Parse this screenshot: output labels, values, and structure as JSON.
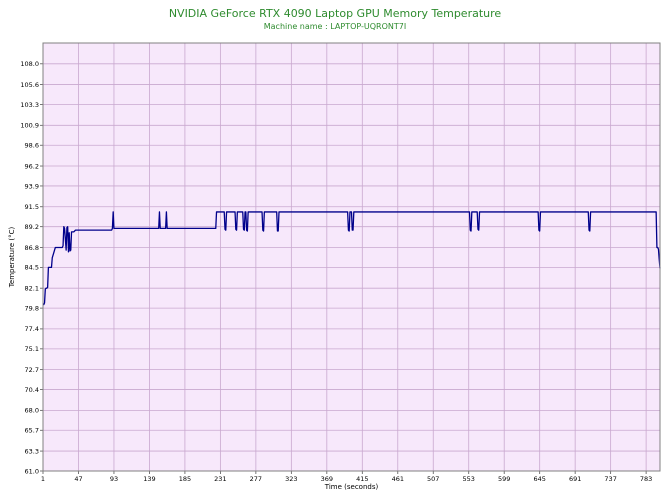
{
  "chart_data": {
    "type": "line",
    "title": "NVIDIA GeForce RTX 4090 Laptop GPU Memory Temperature",
    "subtitle": "Machine name : LAPTOP-UQRONT7I",
    "xlabel": "Time (seconds)",
    "ylabel": "Temperature (°C)",
    "xlim": [
      1,
      801
    ],
    "ylim": [
      61.0,
      110.4
    ],
    "x_ticks": [
      1,
      47,
      93,
      139,
      185,
      231,
      277,
      323,
      369,
      415,
      461,
      507,
      553,
      599,
      645,
      691,
      737,
      783
    ],
    "y_ticks": [
      61.0,
      63.3,
      65.7,
      68.0,
      70.4,
      72.7,
      75.1,
      77.4,
      79.8,
      82.1,
      84.5,
      86.8,
      89.2,
      91.5,
      93.9,
      96.2,
      98.6,
      100.9,
      103.3,
      105.6,
      108.0
    ],
    "grid": true,
    "background_color": "#f7e8fb",
    "grid_color": "#c9a8cf",
    "line_color": "#00008b",
    "title_color": "#2e8b2e",
    "series": [
      {
        "x": [
          1,
          2,
          3,
          4,
          5,
          6,
          7,
          8,
          12,
          13,
          16,
          17,
          26,
          27,
          28,
          29,
          31,
          32,
          33,
          34,
          35,
          36,
          37,
          38,
          41,
          42,
          43,
          44,
          90,
          91,
          92,
          93,
          150,
          151,
          152,
          153,
          159,
          160,
          161,
          162,
          225,
          226,
          227,
          228,
          236,
          237,
          238,
          239,
          250,
          251,
          252,
          253,
          260,
          261,
          262,
          263,
          264,
          265,
          266,
          267,
          285,
          286,
          287,
          288,
          304,
          305,
          306,
          307,
          396,
          397,
          398,
          399,
          401,
          402,
          403,
          404,
          554,
          555,
          556,
          557,
          564,
          565,
          566,
          567,
          643,
          644,
          645,
          646,
          708,
          709,
          710,
          711,
          795,
          796,
          797,
          798,
          799,
          800,
          801
        ],
        "y": [
          80.2,
          80.2,
          80.4,
          82.0,
          82.1,
          82.1,
          82.2,
          84.5,
          84.5,
          85.6,
          86.5,
          86.8,
          86.8,
          87.0,
          89.2,
          89.0,
          86.5,
          89.1,
          89.2,
          86.3,
          88.5,
          86.4,
          86.5,
          88.6,
          88.6,
          88.7,
          88.8,
          88.8,
          88.8,
          89.0,
          90.9,
          89.0,
          89.0,
          89.0,
          90.9,
          89.0,
          89.0,
          89.0,
          90.9,
          89.0,
          89.0,
          90.9,
          90.9,
          90.9,
          90.9,
          88.9,
          88.8,
          90.9,
          90.9,
          88.9,
          88.8,
          90.9,
          90.9,
          88.9,
          88.8,
          90.9,
          90.9,
          88.8,
          88.7,
          90.9,
          90.9,
          88.8,
          88.7,
          90.9,
          90.9,
          88.7,
          88.7,
          90.9,
          90.9,
          88.8,
          88.7,
          90.9,
          90.9,
          88.8,
          88.8,
          90.9,
          90.9,
          88.8,
          88.7,
          90.9,
          90.9,
          88.9,
          88.8,
          90.9,
          90.9,
          88.8,
          88.7,
          90.9,
          90.9,
          88.8,
          88.7,
          90.9,
          90.9,
          90.9,
          86.8,
          86.8,
          86.6,
          85.4,
          84.4
        ]
      }
    ]
  }
}
